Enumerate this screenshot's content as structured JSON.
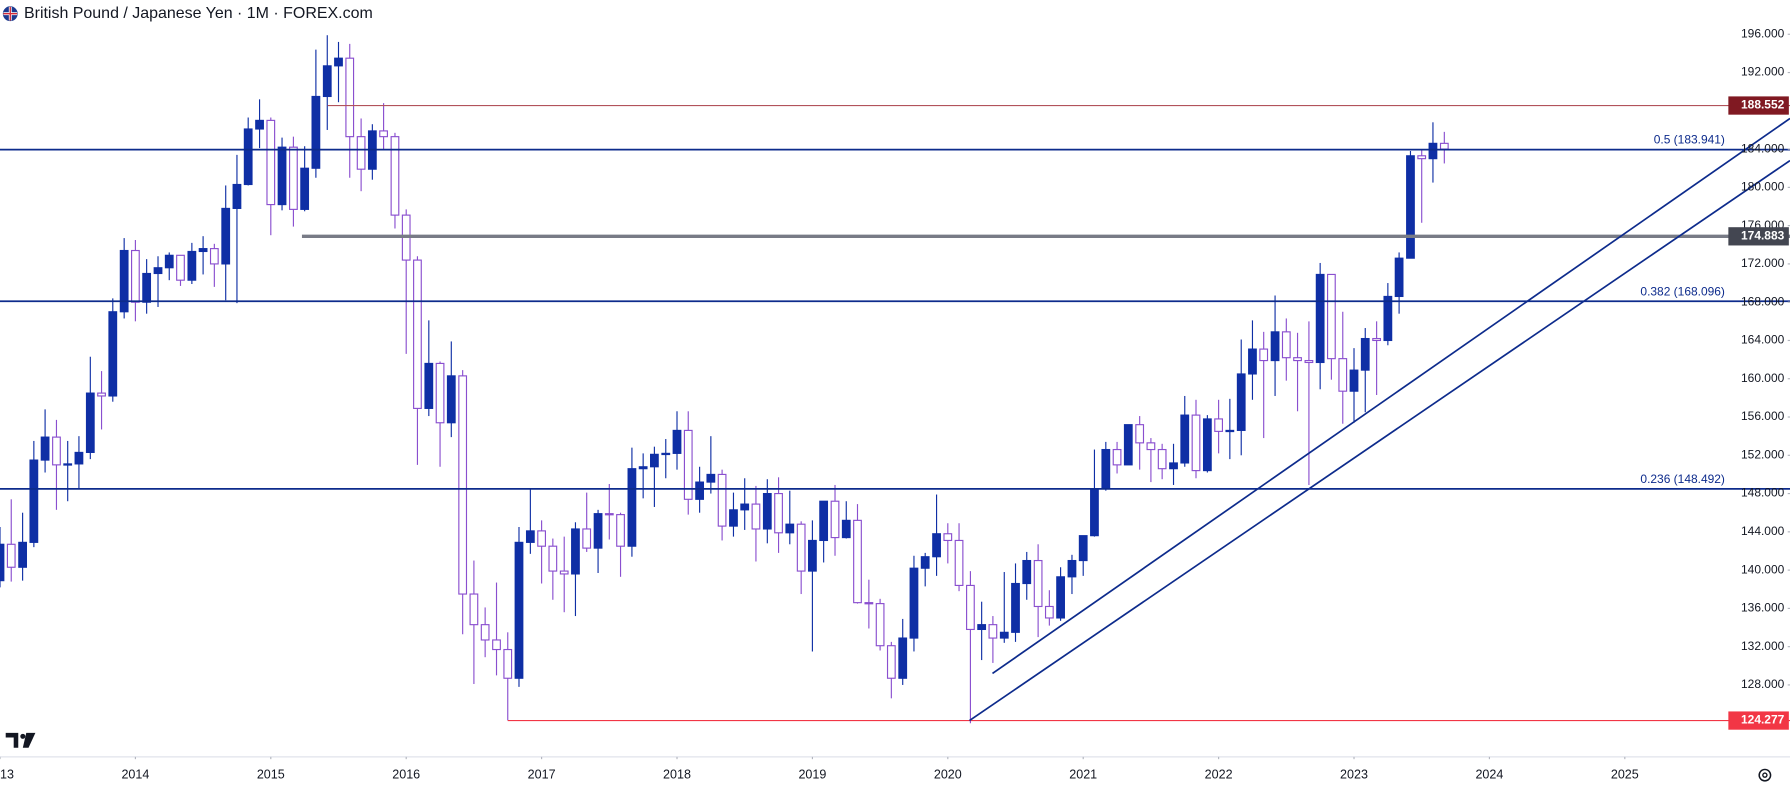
{
  "chart_data": {
    "type": "candlestick",
    "title": "British Pound / Japanese Yen · 1M · FOREX.com",
    "up_color": "#0f2fa5",
    "down_color": "#8a4fcf",
    "xlim": [
      2013.0,
      2026.22
    ],
    "ylim": [
      120.84,
      199.58
    ],
    "xticks": [
      {
        "value": 2013,
        "label": "13"
      },
      2014,
      2015,
      2016,
      2017,
      2018,
      2019,
      2020,
      2021,
      2022,
      2023,
      2024,
      2025
    ],
    "yticks": [
      {
        "value": 128,
        "label": "128.000"
      },
      {
        "value": 132,
        "label": "132.000"
      },
      {
        "value": 136,
        "label": "136.000"
      },
      {
        "value": 140,
        "label": "140.000"
      },
      {
        "value": 144,
        "label": "144.000"
      },
      {
        "value": 148,
        "label": "148.000"
      },
      {
        "value": 152,
        "label": "152.000"
      },
      {
        "value": 156,
        "label": "156.000"
      },
      {
        "value": 160,
        "label": "160.000"
      },
      {
        "value": 164,
        "label": "164.000"
      },
      {
        "value": 168,
        "label": "168.000"
      },
      {
        "value": 172,
        "label": "172.000"
      },
      {
        "value": 176,
        "label": "176.000"
      },
      {
        "value": 180,
        "label": "180.000"
      },
      {
        "value": 184,
        "label": "184.000"
      },
      {
        "value": 192,
        "label": "192.000"
      },
      {
        "value": 196,
        "label": "196.000"
      }
    ],
    "x": [
      2013.0,
      2013.083,
      2013.167,
      2013.25,
      2013.333,
      2013.417,
      2013.5,
      2013.583,
      2013.667,
      2013.75,
      2013.833,
      2013.917,
      2014.0,
      2014.083,
      2014.167,
      2014.25,
      2014.333,
      2014.417,
      2014.5,
      2014.583,
      2014.667,
      2014.75,
      2014.833,
      2014.917,
      2015.0,
      2015.083,
      2015.167,
      2015.25,
      2015.333,
      2015.417,
      2015.5,
      2015.583,
      2015.667,
      2015.75,
      2015.833,
      2015.917,
      2016.0,
      2016.083,
      2016.167,
      2016.25,
      2016.333,
      2016.417,
      2016.5,
      2016.583,
      2016.667,
      2016.75,
      2016.833,
      2016.917,
      2017.0,
      2017.083,
      2017.167,
      2017.25,
      2017.333,
      2017.417,
      2017.5,
      2017.583,
      2017.667,
      2017.75,
      2017.833,
      2017.917,
      2018.0,
      2018.083,
      2018.167,
      2018.25,
      2018.333,
      2018.417,
      2018.5,
      2018.583,
      2018.667,
      2018.75,
      2018.833,
      2018.917,
      2019.0,
      2019.083,
      2019.167,
      2019.25,
      2019.333,
      2019.417,
      2019.5,
      2019.583,
      2019.667,
      2019.75,
      2019.833,
      2019.917,
      2020.0,
      2020.083,
      2020.167,
      2020.25,
      2020.333,
      2020.417,
      2020.5,
      2020.583,
      2020.667,
      2020.75,
      2020.833,
      2020.917,
      2021.0,
      2021.083,
      2021.167,
      2021.25,
      2021.333,
      2021.417,
      2021.5,
      2021.583,
      2021.667,
      2021.75,
      2021.833,
      2021.917,
      2022.0,
      2022.083,
      2022.167,
      2022.25,
      2022.333,
      2022.417,
      2022.5,
      2022.583,
      2022.667,
      2022.75,
      2022.833,
      2022.917,
      2023.0,
      2023.083,
      2023.167,
      2023.25,
      2023.333,
      2023.417,
      2023.5,
      2023.583,
      2023.667
    ],
    "open": [
      138.9,
      142.7,
      140.3,
      142.9,
      151.5,
      153.9,
      151.0,
      151.1,
      152.3,
      158.5,
      158.2,
      167.0,
      173.4,
      168.0,
      171.0,
      171.6,
      172.9,
      170.3,
      173.3,
      173.6,
      172.0,
      177.8,
      180.3,
      186.1,
      187.0,
      178.2,
      184.2,
      177.7,
      182.0,
      189.5,
      192.7,
      193.5,
      185.3,
      181.9,
      185.9,
      185.3,
      177.1,
      172.4,
      156.9,
      161.6,
      155.4,
      160.3,
      137.5,
      134.3,
      132.7,
      131.7,
      128.7,
      142.9,
      144.1,
      142.5,
      139.9,
      139.6,
      144.3,
      142.3,
      145.9,
      145.8,
      142.5,
      150.6,
      150.8,
      152.1,
      152.2,
      154.6,
      147.4,
      149.2,
      150.0,
      144.6,
      146.3,
      146.9,
      144.3,
      148.0,
      143.9,
      144.8,
      139.9,
      143.1,
      147.2,
      143.4,
      145.2,
      136.6,
      136.5,
      132.1,
      128.7,
      132.9,
      140.2,
      141.4,
      143.8,
      143.1,
      138.4,
      133.8,
      134.3,
      132.9,
      133.5,
      138.6,
      141.0,
      136.2,
      135.0,
      139.3,
      141.0,
      143.6,
      148.5,
      152.6,
      151.0,
      155.2,
      153.3,
      152.6,
      150.6,
      151.2,
      156.2,
      150.4,
      155.8,
      154.5,
      154.6,
      160.5,
      163.1,
      161.9,
      164.9,
      162.2,
      161.9,
      161.7,
      170.9,
      162.1,
      158.7,
      160.9,
      164.2,
      164.0,
      168.6,
      172.6,
      183.3,
      183.0,
      184.6
    ],
    "high": [
      144.5,
      147.4,
      146.0,
      153.5,
      156.8,
      155.7,
      153.5,
      154.0,
      162.3,
      160.8,
      168.4,
      174.7,
      174.5,
      172.5,
      172.8,
      173.2,
      172.9,
      174.2,
      174.9,
      174.1,
      180.2,
      183.4,
      187.3,
      189.2,
      187.3,
      185.2,
      185.3,
      184.3,
      194.4,
      195.9,
      195.2,
      195.0,
      187.2,
      186.6,
      188.8,
      185.7,
      177.7,
      172.8,
      166.1,
      161.8,
      163.9,
      160.9,
      141.0,
      136.1,
      138.7,
      133.5,
      144.5,
      148.5,
      145.2,
      143.3,
      143.5,
      145.0,
      148.1,
      146.3,
      149.0,
      146.0,
      152.8,
      152.2,
      152.9,
      153.7,
      156.6,
      156.6,
      150.8,
      154.0,
      150.5,
      148.1,
      149.6,
      148.8,
      149.5,
      149.7,
      148.3,
      145.1,
      145.2,
      147.2,
      148.9,
      147.2,
      146.9,
      139.0,
      137.0,
      132.5,
      134.9,
      141.5,
      141.8,
      147.9,
      144.9,
      144.9,
      139.9,
      136.7,
      135.2,
      139.8,
      140.7,
      141.9,
      142.7,
      137.9,
      140.3,
      141.6,
      143.0,
      152.6,
      153.4,
      153.4,
      155.2,
      156.1,
      153.8,
      153.2,
      153.2,
      158.2,
      157.8,
      156.2,
      157.8,
      157.9,
      164.1,
      166.1,
      164.9,
      168.7,
      166.3,
      164.8,
      166.0,
      172.1,
      170.9,
      167.0,
      163.2,
      165.3,
      166.0,
      170.0,
      173.2,
      183.8,
      184.0,
      186.8,
      185.8
    ],
    "low": [
      138.2,
      138.8,
      138.9,
      142.4,
      150.2,
      146.3,
      147.2,
      148.5,
      151.6,
      154.7,
      157.6,
      166.3,
      166.0,
      166.8,
      167.5,
      170.3,
      169.7,
      169.9,
      170.9,
      169.6,
      168.2,
      167.9,
      180.2,
      184.1,
      175.0,
      177.6,
      175.9,
      177.5,
      181.0,
      186.0,
      188.9,
      181.0,
      179.6,
      180.8,
      183.9,
      175.7,
      162.6,
      151.0,
      156.1,
      150.8,
      153.9,
      133.3,
      128.1,
      130.9,
      129.0,
      124.3,
      127.8,
      141.7,
      138.6,
      136.9,
      135.6,
      135.2,
      141.9,
      139.7,
      143.2,
      139.3,
      141.4,
      147.5,
      146.6,
      149.6,
      150.5,
      145.8,
      146.0,
      148.0,
      143.1,
      143.5,
      144.2,
      140.9,
      142.8,
      141.8,
      142.7,
      137.5,
      131.5,
      140.8,
      141.5,
      143.3,
      136.5,
      133.9,
      131.6,
      126.6,
      128.0,
      131.5,
      138.3,
      139.4,
      140.7,
      137.8,
      124.0,
      130.6,
      130.3,
      132.4,
      132.5,
      136.9,
      133.0,
      134.2,
      134.7,
      137.5,
      139.4,
      143.5,
      148.3,
      150.1,
      151.0,
      150.5,
      149.2,
      149.5,
      148.9,
      150.8,
      149.6,
      150.2,
      152.2,
      151.6,
      152.0,
      157.8,
      153.8,
      158.2,
      159.8,
      156.6,
      148.9,
      158.9,
      159.9,
      155.3,
      155.4,
      156.5,
      158.3,
      163.5,
      166.8,
      172.6,
      176.3,
      180.5,
      182.5
    ],
    "close": [
      142.7,
      140.3,
      142.9,
      151.5,
      153.9,
      151.0,
      151.1,
      152.3,
      158.5,
      158.2,
      167.0,
      173.4,
      168.0,
      171.0,
      171.6,
      172.9,
      170.3,
      173.3,
      173.6,
      172.0,
      177.8,
      180.3,
      186.1,
      187.0,
      178.2,
      184.2,
      177.7,
      182.0,
      189.5,
      192.7,
      193.5,
      185.3,
      181.9,
      185.9,
      185.3,
      177.1,
      172.4,
      156.9,
      161.6,
      155.4,
      160.3,
      137.5,
      134.3,
      132.7,
      131.7,
      128.7,
      142.9,
      144.1,
      142.5,
      139.9,
      139.6,
      144.3,
      142.3,
      145.9,
      145.8,
      142.5,
      150.6,
      150.8,
      152.1,
      152.2,
      154.6,
      147.4,
      149.2,
      150.0,
      144.6,
      146.3,
      146.9,
      144.3,
      148.0,
      143.9,
      144.8,
      139.9,
      143.1,
      147.2,
      143.4,
      145.2,
      136.6,
      136.5,
      132.1,
      128.7,
      132.9,
      140.2,
      141.4,
      143.8,
      143.1,
      138.4,
      133.8,
      134.3,
      132.9,
      133.5,
      138.6,
      141.0,
      136.2,
      135.0,
      139.3,
      141.0,
      143.6,
      148.5,
      152.6,
      151.0,
      155.2,
      153.3,
      152.6,
      150.6,
      151.2,
      156.2,
      150.4,
      155.8,
      154.5,
      154.6,
      160.5,
      163.1,
      161.9,
      164.9,
      162.2,
      161.9,
      161.7,
      170.9,
      162.1,
      158.7,
      160.9,
      164.2,
      164.0,
      168.6,
      172.6,
      183.3,
      183.0,
      184.6,
      184.0
    ],
    "levels": [
      {
        "value": 188.552,
        "start": 2015.42,
        "color": "#b2535b",
        "box_color": "#801922",
        "width": 1
      },
      {
        "value": 174.883,
        "start": 2015.23,
        "color": "#787b86",
        "box_color": "#434651",
        "width": 3
      },
      {
        "value": 124.277,
        "start": 2016.75,
        "color": "#f23645",
        "box_color": "#f23645",
        "width": 1
      }
    ],
    "fib_levels": [
      {
        "value": 183.941,
        "label": "0.5 (183.941)"
      },
      {
        "value": 168.096,
        "label": "0.382 (168.096)"
      },
      {
        "value": 148.492,
        "label": "0.236 (148.492)"
      }
    ],
    "fib_color": "#0d2b8c",
    "trendlines": [
      {
        "x": [
          2020.16,
          2026.22
        ],
        "y": [
          124.28,
          182.8
        ]
      },
      {
        "x": [
          2020.33,
          2026.22
        ],
        "y": [
          129.2,
          187.2
        ]
      }
    ]
  }
}
